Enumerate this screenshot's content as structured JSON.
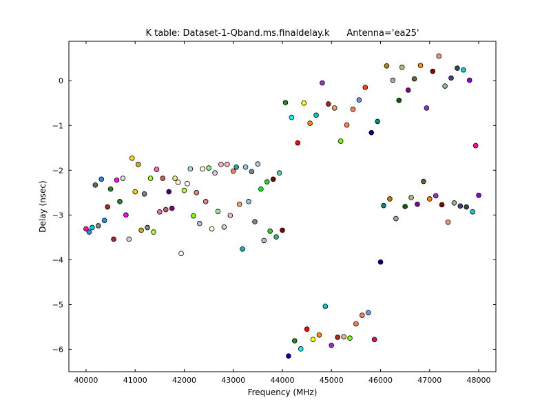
{
  "chart_data": {
    "type": "scatter",
    "title": "K table: Dataset-1-Qband.ms.finaldelay.k      Antenna='ea25'",
    "xlabel": "Frequency (MHz)",
    "ylabel": "Delay (nsec)",
    "xlim": [
      39650,
      48350
    ],
    "ylim": [
      -6.5,
      0.88
    ],
    "xticks": [
      40000,
      41000,
      42000,
      43000,
      44000,
      45000,
      46000,
      47000,
      48000
    ],
    "yticks": [
      -6,
      -5,
      -4,
      -3,
      -2,
      -1,
      0
    ],
    "ytick_labels": [
      "−6",
      "−5",
      "−4",
      "−3",
      "−2",
      "−1",
      "0"
    ],
    "grid": false,
    "legend": "none",
    "marker": "circle",
    "points": [
      {
        "x": 40000,
        "y": -3.31,
        "color": "#ff1493"
      },
      {
        "x": 40063,
        "y": -3.38,
        "color": "#1e90ff"
      },
      {
        "x": 40125,
        "y": -3.28,
        "color": "#00bfff"
      },
      {
        "x": 40188,
        "y": -2.33,
        "color": "#696969"
      },
      {
        "x": 40250,
        "y": -3.24,
        "color": "#808080"
      },
      {
        "x": 40313,
        "y": -2.2,
        "color": "#1e90ff"
      },
      {
        "x": 40375,
        "y": -3.12,
        "color": "#1e90ff"
      },
      {
        "x": 40438,
        "y": -2.82,
        "color": "#b22222"
      },
      {
        "x": 40500,
        "y": -2.42,
        "color": "#228b22"
      },
      {
        "x": 40563,
        "y": -3.54,
        "color": "#b22222"
      },
      {
        "x": 40625,
        "y": -2.22,
        "color": "#ff00ff"
      },
      {
        "x": 40688,
        "y": -2.7,
        "color": "#228b22"
      },
      {
        "x": 40750,
        "y": -2.18,
        "color": "#dcdcdc"
      },
      {
        "x": 40813,
        "y": -3.0,
        "color": "#ff00ff"
      },
      {
        "x": 40875,
        "y": -3.54,
        "color": "#d3d3d3"
      },
      {
        "x": 40938,
        "y": -1.73,
        "color": "#ffd700"
      },
      {
        "x": 41000,
        "y": -2.48,
        "color": "#ffd700"
      },
      {
        "x": 41063,
        "y": -1.87,
        "color": "#daa520"
      },
      {
        "x": 41125,
        "y": -3.34,
        "color": "#daa520"
      },
      {
        "x": 41188,
        "y": -2.53,
        "color": "#808080"
      },
      {
        "x": 41250,
        "y": -3.28,
        "color": "#808080"
      },
      {
        "x": 41313,
        "y": -2.18,
        "color": "#adff2f"
      },
      {
        "x": 41375,
        "y": -3.38,
        "color": "#adff2f"
      },
      {
        "x": 41438,
        "y": -1.98,
        "color": "#ff69b4"
      },
      {
        "x": 41500,
        "y": -2.93,
        "color": "#ff69b4"
      },
      {
        "x": 41563,
        "y": -2.18,
        "color": "#cd5c5c"
      },
      {
        "x": 41625,
        "y": -2.88,
        "color": "#cd5c5c"
      },
      {
        "x": 41688,
        "y": -2.48,
        "color": "#4b0082"
      },
      {
        "x": 41750,
        "y": -2.85,
        "color": "#800080"
      },
      {
        "x": 41813,
        "y": -2.18,
        "color": "#f0e68c"
      },
      {
        "x": 41875,
        "y": -2.27,
        "color": "#fffacd"
      },
      {
        "x": 41938,
        "y": -3.86,
        "color": "#fffafa"
      },
      {
        "x": 42000,
        "y": -2.45,
        "color": "#adff2f"
      },
      {
        "x": 42063,
        "y": -2.3,
        "color": "#fffff0"
      },
      {
        "x": 42125,
        "y": -1.97,
        "color": "#add8e6"
      },
      {
        "x": 42188,
        "y": -3.02,
        "color": "#7cfc00"
      },
      {
        "x": 42250,
        "y": -2.5,
        "color": "#fa8072"
      },
      {
        "x": 42313,
        "y": -3.19,
        "color": "#b0c4de"
      },
      {
        "x": 42375,
        "y": -1.97,
        "color": "#fafad2"
      },
      {
        "x": 42438,
        "y": -2.7,
        "color": "#f08080"
      },
      {
        "x": 42500,
        "y": -1.95,
        "color": "#90ee90"
      },
      {
        "x": 42563,
        "y": -3.31,
        "color": "#fffacd"
      },
      {
        "x": 42625,
        "y": -2.06,
        "color": "#d3d3d3"
      },
      {
        "x": 42688,
        "y": -2.92,
        "color": "#90ee90"
      },
      {
        "x": 42750,
        "y": -1.87,
        "color": "#ffb6c1"
      },
      {
        "x": 42813,
        "y": -3.27,
        "color": "#d3d3d3"
      },
      {
        "x": 42875,
        "y": -1.87,
        "color": "#ffb6c1"
      },
      {
        "x": 42938,
        "y": -3.01,
        "color": "#ffb6c1"
      },
      {
        "x": 43000,
        "y": -2.02,
        "color": "#ff7f50"
      },
      {
        "x": 43063,
        "y": -1.93,
        "color": "#20b2aa"
      },
      {
        "x": 43125,
        "y": -2.76,
        "color": "#ffa07a"
      },
      {
        "x": 43188,
        "y": -3.76,
        "color": "#20b2aa"
      },
      {
        "x": 43250,
        "y": -1.93,
        "color": "#87cefa"
      },
      {
        "x": 43313,
        "y": -2.7,
        "color": "#87ceeb"
      },
      {
        "x": 43375,
        "y": -2.03,
        "color": "#778899"
      },
      {
        "x": 43438,
        "y": -3.15,
        "color": "#778899"
      },
      {
        "x": 43500,
        "y": -1.86,
        "color": "#b0c4de"
      },
      {
        "x": 43563,
        "y": -2.42,
        "color": "#00ff00"
      },
      {
        "x": 43625,
        "y": -3.57,
        "color": "#b0c4de"
      },
      {
        "x": 43688,
        "y": -2.26,
        "color": "#32cd32"
      },
      {
        "x": 43750,
        "y": -3.36,
        "color": "#32cd32"
      },
      {
        "x": 43813,
        "y": -2.2,
        "color": "#800000"
      },
      {
        "x": 43875,
        "y": -3.49,
        "color": "#3cb371"
      },
      {
        "x": 43938,
        "y": -2.06,
        "color": "#66cdaa"
      },
      {
        "x": 44000,
        "y": -3.34,
        "color": "#8b0000"
      },
      {
        "x": 44063,
        "y": -0.49,
        "color": "#228b22"
      },
      {
        "x": 44125,
        "y": -6.15,
        "color": "#0000cd"
      },
      {
        "x": 44188,
        "y": -0.82,
        "color": "#00ffff"
      },
      {
        "x": 44250,
        "y": -5.81,
        "color": "#228b22"
      },
      {
        "x": 44313,
        "y": -1.39,
        "color": "#ff0000"
      },
      {
        "x": 44375,
        "y": -5.99,
        "color": "#00ffff"
      },
      {
        "x": 44438,
        "y": -0.5,
        "color": "#ffff00"
      },
      {
        "x": 44500,
        "y": -5.55,
        "color": "#ff0000"
      },
      {
        "x": 44563,
        "y": -0.95,
        "color": "#ff8c00"
      },
      {
        "x": 44625,
        "y": -5.78,
        "color": "#ffff00"
      },
      {
        "x": 44688,
        "y": -0.77,
        "color": "#00ced1"
      },
      {
        "x": 44750,
        "y": -5.68,
        "color": "#ff8c00"
      },
      {
        "x": 44813,
        "y": -0.05,
        "color": "#9932cc"
      },
      {
        "x": 44875,
        "y": -5.04,
        "color": "#00ced1"
      },
      {
        "x": 44938,
        "y": -0.52,
        "color": "#b22222"
      },
      {
        "x": 45000,
        "y": -5.91,
        "color": "#9932cc"
      },
      {
        "x": 45063,
        "y": -0.61,
        "color": "#f4a460"
      },
      {
        "x": 45125,
        "y": -5.73,
        "color": "#b22222"
      },
      {
        "x": 45188,
        "y": -1.35,
        "color": "#7fff00"
      },
      {
        "x": 45250,
        "y": -5.72,
        "color": "#deb887"
      },
      {
        "x": 45313,
        "y": -0.99,
        "color": "#ff7f50"
      },
      {
        "x": 45375,
        "y": -5.75,
        "color": "#7fff00"
      },
      {
        "x": 45438,
        "y": -0.64,
        "color": "#ff7f50"
      },
      {
        "x": 45500,
        "y": -5.43,
        "color": "#ff7f50"
      },
      {
        "x": 45563,
        "y": -0.43,
        "color": "#6495ed"
      },
      {
        "x": 45625,
        "y": -5.24,
        "color": "#ff7f50"
      },
      {
        "x": 45688,
        "y": -0.15,
        "color": "#ff4500"
      },
      {
        "x": 45750,
        "y": -5.18,
        "color": "#6495ed"
      },
      {
        "x": 45813,
        "y": -1.16,
        "color": "#00008b"
      },
      {
        "x": 45875,
        "y": -5.78,
        "color": "#dc143c"
      },
      {
        "x": 45938,
        "y": -0.91,
        "color": "#008b8b"
      },
      {
        "x": 46000,
        "y": -4.05,
        "color": "#00008b"
      },
      {
        "x": 46063,
        "y": -2.79,
        "color": "#008b8b"
      },
      {
        "x": 46125,
        "y": 0.33,
        "color": "#b8860b"
      },
      {
        "x": 46188,
        "y": -2.64,
        "color": "#b8860b"
      },
      {
        "x": 46250,
        "y": 0.01,
        "color": "#a9a9a9"
      },
      {
        "x": 46313,
        "y": -3.08,
        "color": "#a9a9a9"
      },
      {
        "x": 46375,
        "y": -0.44,
        "color": "#006400"
      },
      {
        "x": 46438,
        "y": 0.3,
        "color": "#bdb76b"
      },
      {
        "x": 46500,
        "y": -2.81,
        "color": "#006400"
      },
      {
        "x": 46563,
        "y": -0.21,
        "color": "#8b008b"
      },
      {
        "x": 46625,
        "y": -2.61,
        "color": "#bdb76b"
      },
      {
        "x": 46688,
        "y": 0.04,
        "color": "#556b2f"
      },
      {
        "x": 46750,
        "y": -2.76,
        "color": "#8b008b"
      },
      {
        "x": 46813,
        "y": 0.34,
        "color": "#ff8c00"
      },
      {
        "x": 46875,
        "y": -2.25,
        "color": "#556b2f"
      },
      {
        "x": 46938,
        "y": -0.61,
        "color": "#9932cc"
      },
      {
        "x": 47000,
        "y": -2.64,
        "color": "#ff8c00"
      },
      {
        "x": 47063,
        "y": 0.21,
        "color": "#8b0000"
      },
      {
        "x": 47125,
        "y": -2.57,
        "color": "#9932cc"
      },
      {
        "x": 47188,
        "y": 0.55,
        "color": "#e9967a"
      },
      {
        "x": 47250,
        "y": -2.77,
        "color": "#8b0000"
      },
      {
        "x": 47313,
        "y": -0.12,
        "color": "#8fbc8f"
      },
      {
        "x": 47375,
        "y": -3.16,
        "color": "#e9967a"
      },
      {
        "x": 47438,
        "y": 0.06,
        "color": "#483d8b"
      },
      {
        "x": 47500,
        "y": -2.73,
        "color": "#8fbc8f"
      },
      {
        "x": 47563,
        "y": 0.28,
        "color": "#2f4f4f"
      },
      {
        "x": 47625,
        "y": -2.8,
        "color": "#483d8b"
      },
      {
        "x": 47688,
        "y": 0.24,
        "color": "#00ced1"
      },
      {
        "x": 47750,
        "y": -2.82,
        "color": "#2f4f4f"
      },
      {
        "x": 47813,
        "y": 0.01,
        "color": "#9400d3"
      },
      {
        "x": 47875,
        "y": -2.93,
        "color": "#00ced1"
      },
      {
        "x": 47938,
        "y": -1.45,
        "color": "#ff1493"
      },
      {
        "x": 48000,
        "y": -2.56,
        "color": "#9400d3"
      }
    ]
  }
}
